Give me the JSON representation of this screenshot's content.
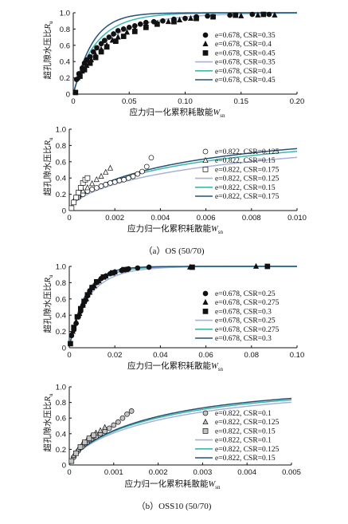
{
  "captions": {
    "os": "（a）OS (50/70)",
    "oss10": "（b）OSS10 (50/70)"
  },
  "labels": {
    "ylabel_main": "超孔隙水压比",
    "ylabel_sym": "R",
    "ylabel_sub": "u",
    "xlabel_main": "应力归一化累积耗散能",
    "xlabel_sym": "W",
    "xlabel_sub": "sn"
  },
  "colors": {
    "axis": "#111111",
    "curve_light": "#a6b3d6",
    "curve_mid": "#3fb6a8",
    "curve_dark": "#24527a"
  },
  "chart_data": [
    {
      "type": "scatter",
      "panel": "OS-1",
      "xlim": [
        0,
        0.2
      ],
      "ylim": [
        0,
        1.0
      ],
      "xticks": [
        "0",
        "0.05",
        "0.10",
        "0.15",
        "0.20"
      ],
      "yticks": [
        "0",
        "0.2",
        "0.4",
        "0.6",
        "0.8",
        "1.0"
      ],
      "legend": [
        {
          "label": "e=0.678, CSR=0.35",
          "kind": "marker",
          "marker": "circle",
          "fill": "#111111"
        },
        {
          "label": "e=0.678, CSR=0.4",
          "kind": "marker",
          "marker": "triangle",
          "fill": "#111111"
        },
        {
          "label": "e=0.678, CSR=0.45",
          "kind": "marker",
          "marker": "square",
          "fill": "#111111"
        },
        {
          "label": "e=0.678, CSR=0.35",
          "kind": "line",
          "color": "#a6b3d6"
        },
        {
          "label": "e=0.678, CSR=0.4",
          "kind": "line",
          "color": "#3fb6a8"
        },
        {
          "label": "e=0.678, CSR=0.45",
          "kind": "line",
          "color": "#24527a"
        }
      ],
      "series": [
        {
          "marker": "circle",
          "fill": "#111111",
          "x": [
            0.003,
            0.005,
            0.008,
            0.01,
            0.012,
            0.015,
            0.018,
            0.021,
            0.025,
            0.028,
            0.032,
            0.036,
            0.04,
            0.045,
            0.05,
            0.055,
            0.06,
            0.065,
            0.072,
            0.08,
            0.09,
            0.1,
            0.11,
            0.12,
            0.14,
            0.16,
            0.175
          ],
          "y": [
            0.18,
            0.25,
            0.32,
            0.38,
            0.42,
            0.46,
            0.52,
            0.57,
            0.62,
            0.66,
            0.7,
            0.74,
            0.78,
            0.8,
            0.82,
            0.84,
            0.86,
            0.88,
            0.89,
            0.9,
            0.92,
            0.93,
            0.95,
            0.96,
            0.97,
            0.98,
            0.98
          ]
        },
        {
          "marker": "triangle",
          "fill": "#111111",
          "x": [
            0.004,
            0.008,
            0.012,
            0.016,
            0.02,
            0.025,
            0.03,
            0.035,
            0.04,
            0.048,
            0.055,
            0.065,
            0.075,
            0.085,
            0.095,
            0.105,
            0.125,
            0.15,
            0.165,
            0.18
          ],
          "y": [
            0.2,
            0.28,
            0.35,
            0.42,
            0.48,
            0.55,
            0.6,
            0.66,
            0.7,
            0.76,
            0.8,
            0.84,
            0.87,
            0.89,
            0.91,
            0.93,
            0.95,
            0.96,
            0.97,
            0.97
          ]
        },
        {
          "marker": "square",
          "fill": "#111111",
          "x": [
            0.002,
            0.006,
            0.01,
            0.015,
            0.02,
            0.025,
            0.03,
            0.038,
            0.045,
            0.055,
            0.065,
            0.075,
            0.09,
            0.11,
            0.125,
            0.145,
            0.17
          ],
          "y": [
            0.02,
            0.22,
            0.3,
            0.38,
            0.45,
            0.52,
            0.58,
            0.65,
            0.71,
            0.77,
            0.82,
            0.86,
            0.89,
            0.93,
            0.95,
            0.97,
            0.98
          ]
        }
      ],
      "curves": [
        {
          "color": "#a6b3d6",
          "k": 36,
          "p": 0.85
        },
        {
          "color": "#3fb6a8",
          "k": 48,
          "p": 0.95
        },
        {
          "color": "#24527a",
          "k": 58,
          "p": 1.05
        }
      ]
    },
    {
      "type": "scatter",
      "panel": "OS-2",
      "xlim": [
        0,
        0.01
      ],
      "ylim": [
        0,
        1.0
      ],
      "xticks": [
        "0",
        "0.002",
        "0.004",
        "0.006",
        "0.008",
        "0.010"
      ],
      "yticks": [
        "0",
        "0.2",
        "0.4",
        "0.6",
        "0.8",
        "1.0"
      ],
      "legend": [
        {
          "label": "e=0.822, CSR=0.125",
          "kind": "marker",
          "marker": "circle",
          "fill": "#ffffff"
        },
        {
          "label": "e=0.822, CSR=0.15",
          "kind": "marker",
          "marker": "triangle",
          "fill": "#ffffff"
        },
        {
          "label": "e=0.822, CSR=0.175",
          "kind": "marker",
          "marker": "square",
          "fill": "#ffffff"
        },
        {
          "label": "e=0.822, CSR=0.125",
          "kind": "line",
          "color": "#a6b3d6"
        },
        {
          "label": "e=0.822, CSR=0.15",
          "kind": "line",
          "color": "#3fb6a8"
        },
        {
          "label": "e=0.822, CSR=0.175",
          "kind": "line",
          "color": "#24527a"
        }
      ],
      "series": [
        {
          "marker": "circle",
          "fill": "#ffffff",
          "x": [
            0.0002,
            0.0004,
            0.0006,
            0.0008,
            0.001,
            0.0012,
            0.0014,
            0.0016,
            0.0018,
            0.002,
            0.0022,
            0.0024,
            0.0026,
            0.0028,
            0.003,
            0.0032,
            0.0034,
            0.0036
          ],
          "y": [
            0.1,
            0.16,
            0.2,
            0.24,
            0.26,
            0.28,
            0.3,
            0.32,
            0.34,
            0.35,
            0.37,
            0.38,
            0.4,
            0.42,
            0.45,
            0.48,
            0.54,
            0.65
          ]
        },
        {
          "marker": "triangle",
          "fill": "#ffffff",
          "x": [
            0.0002,
            0.0004,
            0.0006,
            0.0008,
            0.001,
            0.0012,
            0.0014,
            0.0016,
            0.0018
          ],
          "y": [
            0.12,
            0.18,
            0.24,
            0.28,
            0.33,
            0.38,
            0.42,
            0.47,
            0.52
          ]
        },
        {
          "marker": "square",
          "fill": "#ffffff",
          "x": [
            0.0001,
            0.0002,
            0.0003,
            0.0004,
            0.0005,
            0.0006,
            0.0007,
            0.0008
          ],
          "y": [
            0.03,
            0.1,
            0.16,
            0.22,
            0.28,
            0.34,
            0.38,
            0.4
          ]
        }
      ],
      "curves": [
        {
          "color": "#a6b3d6",
          "k": 110,
          "p": 0.62
        },
        {
          "color": "#3fb6a8",
          "k": 150,
          "p": 0.65
        },
        {
          "color": "#24527a",
          "k": 170,
          "p": 0.68
        }
      ]
    },
    {
      "type": "scatter",
      "panel": "OSS10-1",
      "xlim": [
        0,
        0.1
      ],
      "ylim": [
        0,
        1.0
      ],
      "xticks": [
        "0",
        "0.02",
        "0.04",
        "0.06",
        "0.08",
        "0.10"
      ],
      "yticks": [
        "0",
        "0.2",
        "0.4",
        "0.6",
        "0.8",
        "1.0"
      ],
      "legend": [
        {
          "label": "e=0.678, CSR=0.25",
          "kind": "marker",
          "marker": "circle",
          "fill": "#111111"
        },
        {
          "label": "e=0.678, CSR=0.275",
          "kind": "marker",
          "marker": "triangle",
          "fill": "#111111"
        },
        {
          "label": "e=0.678, CSR=0.3",
          "kind": "marker",
          "marker": "square",
          "fill": "#111111"
        },
        {
          "label": "e=0.678, CSR=0.25",
          "kind": "line",
          "color": "#a6b3d6"
        },
        {
          "label": "e=0.678, CSR=0.275",
          "kind": "line",
          "color": "#3fb6a8"
        },
        {
          "label": "e=0.678, CSR=0.3",
          "kind": "line",
          "color": "#24527a"
        }
      ],
      "series": [
        {
          "marker": "circle",
          "fill": "#111111",
          "x": [
            0.001,
            0.002,
            0.003,
            0.004,
            0.005,
            0.006,
            0.007,
            0.008,
            0.009,
            0.01,
            0.012,
            0.014,
            0.016,
            0.018,
            0.02,
            0.023,
            0.026,
            0.03,
            0.035
          ],
          "y": [
            0.15,
            0.22,
            0.3,
            0.38,
            0.45,
            0.52,
            0.58,
            0.64,
            0.7,
            0.74,
            0.8,
            0.85,
            0.88,
            0.91,
            0.93,
            0.95,
            0.97,
            0.98,
            0.99
          ]
        },
        {
          "marker": "triangle",
          "fill": "#111111",
          "x": [
            0.0015,
            0.003,
            0.0045,
            0.006,
            0.0075,
            0.009,
            0.011,
            0.013,
            0.016,
            0.02,
            0.025,
            0.053,
            0.082
          ],
          "y": [
            0.2,
            0.32,
            0.42,
            0.52,
            0.6,
            0.68,
            0.76,
            0.82,
            0.88,
            0.93,
            0.96,
            0.99,
            1.0
          ]
        },
        {
          "marker": "square",
          "fill": "#111111",
          "x": [
            0.0005,
            0.002,
            0.0035,
            0.005,
            0.0065,
            0.008,
            0.01,
            0.012,
            0.015,
            0.019,
            0.024,
            0.054,
            0.087
          ],
          "y": [
            0.05,
            0.25,
            0.38,
            0.48,
            0.57,
            0.65,
            0.74,
            0.81,
            0.87,
            0.92,
            0.96,
            0.99,
            1.0
          ]
        }
      ],
      "curves": [
        {
          "color": "#a6b3d6",
          "k": 115,
          "p": 0.9
        },
        {
          "color": "#3fb6a8",
          "k": 130,
          "p": 0.95
        },
        {
          "color": "#24527a",
          "k": 145,
          "p": 1.0
        }
      ]
    },
    {
      "type": "scatter",
      "panel": "OSS10-2",
      "xlim": [
        0,
        0.005
      ],
      "ylim": [
        0,
        1.0
      ],
      "xticks": [
        "0",
        "0.001",
        "0.002",
        "0.003",
        "0.004",
        "0.005"
      ],
      "yticks": [
        "0",
        "0.2",
        "0.4",
        "0.6",
        "0.8",
        "1.0"
      ],
      "legend": [
        {
          "label": "e=0.822, CSR=0.1",
          "kind": "marker",
          "marker": "circle",
          "fill": "#c4c4c4"
        },
        {
          "label": "e=0.822, CSR=0.125",
          "kind": "marker",
          "marker": "triangle",
          "fill": "#c4c4c4"
        },
        {
          "label": "e=0.822, CSR=0.15",
          "kind": "marker",
          "marker": "square",
          "fill": "#c4c4c4"
        },
        {
          "label": "e=0.822, CSR=0.1",
          "kind": "line",
          "color": "#a6b3d6"
        },
        {
          "label": "e=0.822, CSR=0.125",
          "kind": "line",
          "color": "#3fb6a8"
        },
        {
          "label": "e=0.822, CSR=0.15",
          "kind": "line",
          "color": "#24527a"
        }
      ],
      "series": [
        {
          "marker": "circle",
          "fill": "#c4c4c4",
          "x": [
            0.0001,
            0.0002,
            0.0003,
            0.0004,
            0.0005,
            0.0006,
            0.0007,
            0.0008,
            0.0009,
            0.001,
            0.0011,
            0.0012,
            0.0013,
            0.0014
          ],
          "y": [
            0.1,
            0.18,
            0.24,
            0.29,
            0.33,
            0.36,
            0.4,
            0.43,
            0.47,
            0.51,
            0.55,
            0.6,
            0.65,
            0.69
          ]
        },
        {
          "marker": "triangle",
          "fill": "#c4c4c4",
          "x": [
            0.0001,
            0.0002,
            0.0003,
            0.0004,
            0.0005,
            0.0006,
            0.0007,
            0.0008
          ],
          "y": [
            0.12,
            0.2,
            0.27,
            0.32,
            0.37,
            0.41,
            0.44,
            0.48
          ]
        },
        {
          "marker": "square",
          "fill": "#c4c4c4",
          "x": [
            5e-05,
            0.00015,
            0.00025,
            0.00035,
            0.00045,
            0.00055
          ],
          "y": [
            0.05,
            0.15,
            0.23,
            0.29,
            0.34,
            0.38
          ]
        }
      ],
      "curves": [
        {
          "color": "#a6b3d6",
          "k": 400,
          "p": 0.7
        },
        {
          "color": "#3fb6a8",
          "k": 450,
          "p": 0.72
        },
        {
          "color": "#24527a",
          "k": 480,
          "p": 0.74
        }
      ]
    }
  ]
}
